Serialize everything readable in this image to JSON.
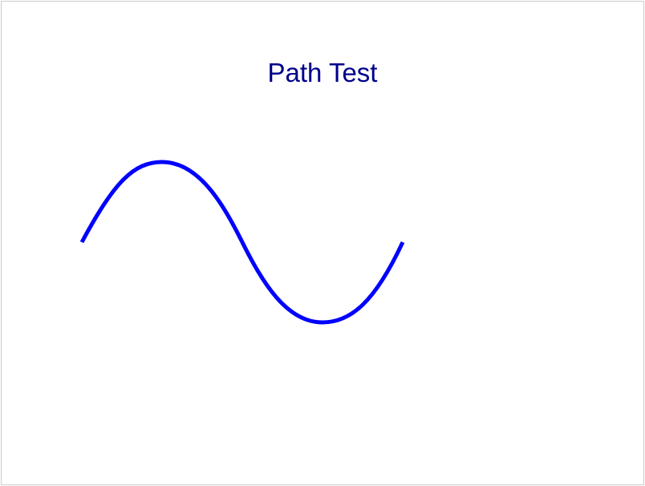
{
  "title": "Path Test",
  "colors": {
    "frame_border": "#cccccc",
    "title": "#00008b",
    "curve_stroke": "#0000ff",
    "background": "#ffffff"
  },
  "curve": {
    "shape": "sine-wave",
    "cycles": 1
  }
}
